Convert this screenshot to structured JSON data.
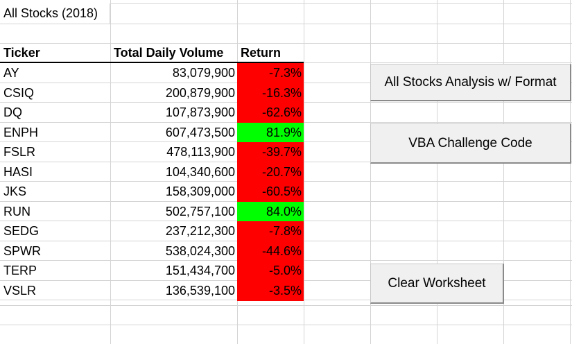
{
  "sheet": {
    "title": "All Stocks (2018)",
    "headers": {
      "ticker": "Ticker",
      "volume": "Total Daily Volume",
      "return": "Return"
    },
    "rows": [
      {
        "ticker": "AY",
        "volume": "83,079,900",
        "return": "-7.3%",
        "status": "negative"
      },
      {
        "ticker": "CSIQ",
        "volume": "200,879,900",
        "return": "-16.3%",
        "status": "negative"
      },
      {
        "ticker": "DQ",
        "volume": "107,873,900",
        "return": "-62.6%",
        "status": "negative"
      },
      {
        "ticker": "ENPH",
        "volume": "607,473,500",
        "return": "81.9%",
        "status": "positive"
      },
      {
        "ticker": "FSLR",
        "volume": "478,113,900",
        "return": "-39.7%",
        "status": "negative"
      },
      {
        "ticker": "HASI",
        "volume": "104,340,600",
        "return": "-20.7%",
        "status": "negative"
      },
      {
        "ticker": "JKS",
        "volume": "158,309,000",
        "return": "-60.5%",
        "status": "negative"
      },
      {
        "ticker": "RUN",
        "volume": "502,757,100",
        "return": "84.0%",
        "status": "positive"
      },
      {
        "ticker": "SEDG",
        "volume": "237,212,300",
        "return": "-7.8%",
        "status": "negative"
      },
      {
        "ticker": "SPWR",
        "volume": "538,024,300",
        "return": "-44.6%",
        "status": "negative"
      },
      {
        "ticker": "TERP",
        "volume": "151,434,700",
        "return": "-5.0%",
        "status": "negative"
      },
      {
        "ticker": "VSLR",
        "volume": "136,539,100",
        "return": "-3.5%",
        "status": "negative"
      }
    ]
  },
  "buttons": {
    "analysis": "All Stocks Analysis w/ Format",
    "challenge": "VBA Challenge Code",
    "clear": "Clear Worksheet"
  },
  "colors": {
    "positive": "#00ff00",
    "negative": "#ff0000",
    "gridline": "#d4d4d4"
  }
}
